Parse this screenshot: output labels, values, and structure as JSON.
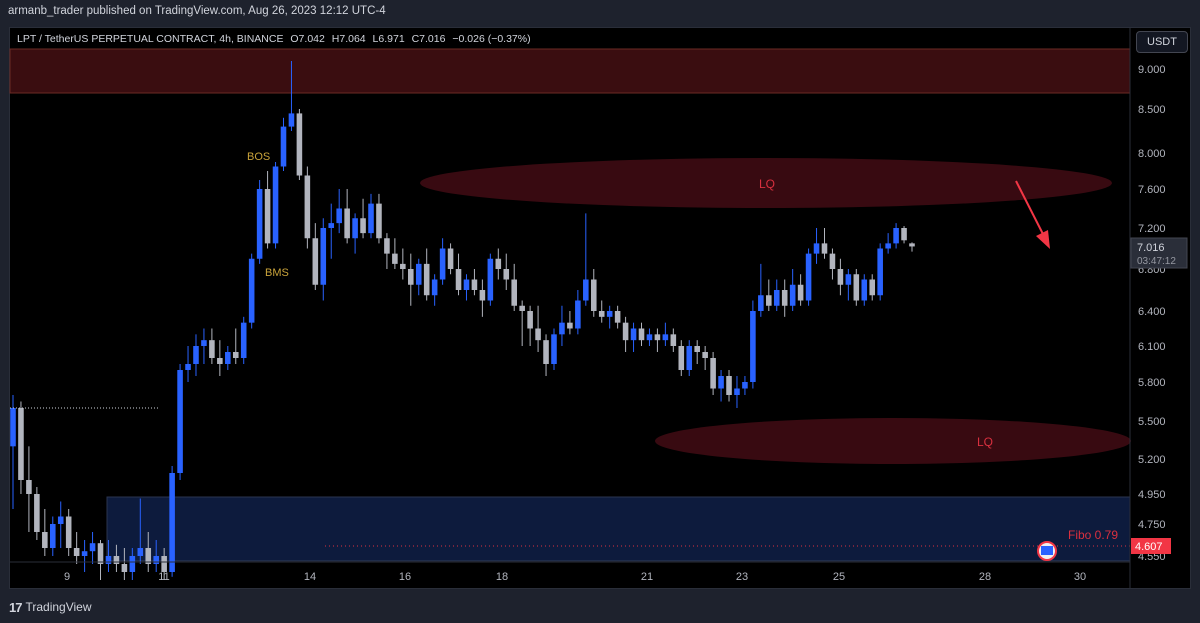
{
  "header": {
    "published": "armanb_trader published on TradingView.com, Aug 26, 2023 12:12 UTC-4"
  },
  "legend": {
    "symbol": "LPT / TetherUS PERPETUAL CONTRACT, 4h, BINANCE",
    "open": "O7.042",
    "high": "H7.064",
    "low": "L6.971",
    "close": "C7.016",
    "change": "−0.026 (−0.37%)"
  },
  "currency_button": "USDT",
  "footer": {
    "logo": "17",
    "brand": "TradingView"
  },
  "colors": {
    "background": "#000000",
    "up_candle": "#2962ff",
    "down_candle": "#b2b5be",
    "zone_red": "#3a0d10",
    "zone_blue": "#0d1b3d",
    "lq_text": "#d9303f",
    "annotation_gold": "#c9a33a",
    "last_price_tag": "#f23645"
  },
  "chart_data": {
    "type": "candlestick",
    "y_axis_ticks": [
      "9.000",
      "8.500",
      "8.000",
      "7.600",
      "7.200",
      "6.800",
      "6.400",
      "6.100",
      "5.800",
      "5.500",
      "5.200",
      "4.950",
      "4.750",
      "4.550"
    ],
    "x_axis_ticks": [
      "9",
      "11",
      "14",
      "16",
      "18",
      "21",
      "23",
      "25",
      "28",
      "30"
    ],
    "last_price": "7.016",
    "countdown": "03:47:12",
    "price_tag": "4.607",
    "annotations": {
      "bos": "BOS",
      "bms": "BMS",
      "lq_upper": "LQ",
      "lq_lower": "LQ",
      "fibo": "Fibo 0.79"
    },
    "zones": {
      "upper_red_range": [
        8.7,
        9.25
      ],
      "blue_range": [
        4.52,
        4.93
      ]
    },
    "candles": [
      [
        5.3,
        5.7,
        4.85,
        5.6
      ],
      [
        5.6,
        5.65,
        4.95,
        5.05
      ],
      [
        5.05,
        5.3,
        4.7,
        4.95
      ],
      [
        4.95,
        5.0,
        4.65,
        4.7
      ],
      [
        4.7,
        4.85,
        4.55,
        4.6
      ],
      [
        4.6,
        4.8,
        4.55,
        4.75
      ],
      [
        4.75,
        4.9,
        4.6,
        4.8
      ],
      [
        4.8,
        4.85,
        4.55,
        4.6
      ],
      [
        4.6,
        4.7,
        4.5,
        4.55
      ],
      [
        4.55,
        4.65,
        4.45,
        4.58
      ],
      [
        4.58,
        4.7,
        4.5,
        4.63
      ],
      [
        4.63,
        4.65,
        4.4,
        4.5
      ],
      [
        4.5,
        4.65,
        4.45,
        4.55
      ],
      [
        4.55,
        4.62,
        4.45,
        4.5
      ],
      [
        4.5,
        4.6,
        4.4,
        4.45
      ],
      [
        4.45,
        4.6,
        4.4,
        4.55
      ],
      [
        4.55,
        4.92,
        4.5,
        4.6
      ],
      [
        4.6,
        4.7,
        4.45,
        4.5
      ],
      [
        4.5,
        4.65,
        4.45,
        4.55
      ],
      [
        4.55,
        4.6,
        4.4,
        4.45
      ],
      [
        4.45,
        5.15,
        4.42,
        5.1
      ],
      [
        5.1,
        5.95,
        5.05,
        5.9
      ],
      [
        5.9,
        6.1,
        5.8,
        5.95
      ],
      [
        5.95,
        6.2,
        5.85,
        6.1
      ],
      [
        6.1,
        6.25,
        5.95,
        6.15
      ],
      [
        6.15,
        6.25,
        5.95,
        6.0
      ],
      [
        6.0,
        6.15,
        5.85,
        5.95
      ],
      [
        5.95,
        6.1,
        5.9,
        6.05
      ],
      [
        6.05,
        6.25,
        5.95,
        6.0
      ],
      [
        6.0,
        6.35,
        5.95,
        6.3
      ],
      [
        6.3,
        6.95,
        6.25,
        6.9
      ],
      [
        6.9,
        7.7,
        6.85,
        7.6
      ],
      [
        7.6,
        7.8,
        7.0,
        7.05
      ],
      [
        7.05,
        7.9,
        7.0,
        7.85
      ],
      [
        7.85,
        8.4,
        7.8,
        8.3
      ],
      [
        8.3,
        9.1,
        8.25,
        8.45
      ],
      [
        8.45,
        8.5,
        7.7,
        7.75
      ],
      [
        7.75,
        7.85,
        7.0,
        7.1
      ],
      [
        7.1,
        7.25,
        6.6,
        6.65
      ],
      [
        6.65,
        7.3,
        6.5,
        7.2
      ],
      [
        7.2,
        7.45,
        6.9,
        7.25
      ],
      [
        7.25,
        7.6,
        7.15,
        7.4
      ],
      [
        7.4,
        7.6,
        7.05,
        7.1
      ],
      [
        7.1,
        7.35,
        6.95,
        7.3
      ],
      [
        7.3,
        7.5,
        7.1,
        7.15
      ],
      [
        7.15,
        7.55,
        7.1,
        7.45
      ],
      [
        7.45,
        7.55,
        7.05,
        7.1
      ],
      [
        7.1,
        7.15,
        6.8,
        6.95
      ],
      [
        6.95,
        7.1,
        6.8,
        6.85
      ],
      [
        6.85,
        7.0,
        6.7,
        6.8
      ],
      [
        6.8,
        6.95,
        6.45,
        6.65
      ],
      [
        6.65,
        6.9,
        6.55,
        6.85
      ],
      [
        6.85,
        7.0,
        6.5,
        6.55
      ],
      [
        6.55,
        6.75,
        6.45,
        6.7
      ],
      [
        6.7,
        7.1,
        6.65,
        7.0
      ],
      [
        7.0,
        7.05,
        6.75,
        6.8
      ],
      [
        6.8,
        6.95,
        6.55,
        6.6
      ],
      [
        6.6,
        6.75,
        6.5,
        6.7
      ],
      [
        6.7,
        6.8,
        6.55,
        6.6
      ],
      [
        6.6,
        6.7,
        6.35,
        6.5
      ],
      [
        6.5,
        6.95,
        6.45,
        6.9
      ],
      [
        6.9,
        7.0,
        6.7,
        6.8
      ],
      [
        6.8,
        6.95,
        6.6,
        6.7
      ],
      [
        6.7,
        6.85,
        6.4,
        6.45
      ],
      [
        6.45,
        6.5,
        6.1,
        6.4
      ],
      [
        6.4,
        6.45,
        6.1,
        6.25
      ],
      [
        6.25,
        6.45,
        6.05,
        6.15
      ],
      [
        6.15,
        6.2,
        5.85,
        5.95
      ],
      [
        5.95,
        6.25,
        5.9,
        6.2
      ],
      [
        6.2,
        6.45,
        6.1,
        6.3
      ],
      [
        6.3,
        6.4,
        6.2,
        6.25
      ],
      [
        6.25,
        6.6,
        6.2,
        6.5
      ],
      [
        6.5,
        7.35,
        6.45,
        6.7
      ],
      [
        6.7,
        6.8,
        6.35,
        6.4
      ],
      [
        6.4,
        6.5,
        6.3,
        6.35
      ],
      [
        6.35,
        6.45,
        6.25,
        6.4
      ],
      [
        6.4,
        6.45,
        6.25,
        6.3
      ],
      [
        6.3,
        6.35,
        6.05,
        6.15
      ],
      [
        6.15,
        6.3,
        6.05,
        6.25
      ],
      [
        6.25,
        6.3,
        6.1,
        6.15
      ],
      [
        6.15,
        6.25,
        6.1,
        6.2
      ],
      [
        6.2,
        6.25,
        6.05,
        6.15
      ],
      [
        6.15,
        6.3,
        6.1,
        6.2
      ],
      [
        6.2,
        6.25,
        6.05,
        6.1
      ],
      [
        6.1,
        6.15,
        5.85,
        5.9
      ],
      [
        5.9,
        6.15,
        5.85,
        6.1
      ],
      [
        6.1,
        6.15,
        5.95,
        6.05
      ],
      [
        6.05,
        6.1,
        5.9,
        6.0
      ],
      [
        6.0,
        6.05,
        5.7,
        5.75
      ],
      [
        5.75,
        5.9,
        5.65,
        5.85
      ],
      [
        5.85,
        5.9,
        5.65,
        5.7
      ],
      [
        5.7,
        5.85,
        5.6,
        5.75
      ],
      [
        5.75,
        5.85,
        5.7,
        5.8
      ],
      [
        5.8,
        6.5,
        5.75,
        6.4
      ],
      [
        6.4,
        6.85,
        6.35,
        6.55
      ],
      [
        6.55,
        6.7,
        6.4,
        6.45
      ],
      [
        6.45,
        6.7,
        6.4,
        6.6
      ],
      [
        6.6,
        6.7,
        6.35,
        6.45
      ],
      [
        6.45,
        6.8,
        6.4,
        6.65
      ],
      [
        6.65,
        6.75,
        6.45,
        6.5
      ],
      [
        6.5,
        7.0,
        6.45,
        6.95
      ],
      [
        6.95,
        7.2,
        6.85,
        7.05
      ],
      [
        7.05,
        7.2,
        6.9,
        6.95
      ],
      [
        6.95,
        7.0,
        6.7,
        6.8
      ],
      [
        6.8,
        6.9,
        6.55,
        6.65
      ],
      [
        6.65,
        6.8,
        6.5,
        6.75
      ],
      [
        6.75,
        6.8,
        6.45,
        6.5
      ],
      [
        6.5,
        6.75,
        6.45,
        6.7
      ],
      [
        6.7,
        6.75,
        6.5,
        6.55
      ],
      [
        6.55,
        7.05,
        6.5,
        7.0
      ],
      [
        7.0,
        7.15,
        6.95,
        7.05
      ],
      [
        7.05,
        7.25,
        7.0,
        7.2
      ],
      [
        7.2,
        7.22,
        7.05,
        7.08
      ],
      [
        7.05,
        7.06,
        6.97,
        7.02
      ]
    ]
  }
}
